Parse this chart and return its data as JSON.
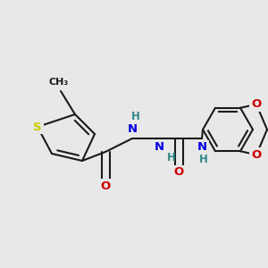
{
  "bg_color": "#e8e8e8",
  "bond_color": "#1a1a1a",
  "atom_colors": {
    "O": "#cc0000",
    "N": "#0000dd",
    "S": "#cccc00",
    "H": "#338888"
  },
  "lw": 1.5,
  "fs": 9.5,
  "fs_small": 8.0
}
